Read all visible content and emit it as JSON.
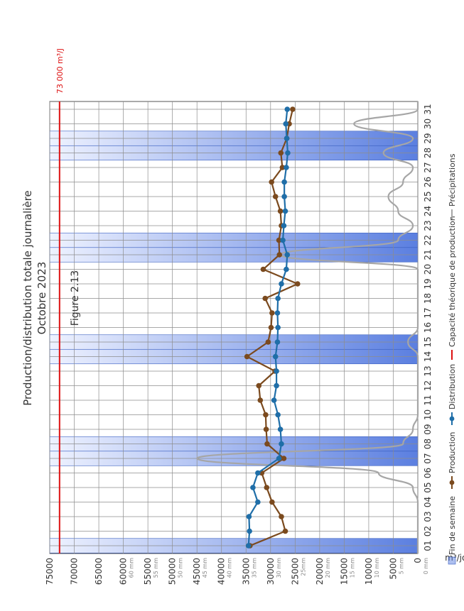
{
  "figure_label": "Figure 2.13",
  "title": "Production/distribution totale journalière",
  "subtitle": "Octobre 2023",
  "capacity_label": "73 000 m³/J",
  "colors": {
    "production": "#7b4a1e",
    "distribution": "#1f6ea8",
    "capacity": "#dd1111",
    "precip": "#a6a6a6",
    "weekend": "#5b7fe0"
  },
  "legend": {
    "weekend": "Fin de semaine",
    "production": "Production",
    "distribution": "Distribution",
    "capacity": "Capacité théorique de production",
    "precip": "Précipitations"
  },
  "chart_data": {
    "type": "line",
    "orientation": "rotated-90-clockwise",
    "title": "Production/distribution totale journalière",
    "subtitle": "Octobre 2023",
    "ylabel": "m³/jour",
    "ylim": [
      0,
      75000
    ],
    "grid": true,
    "legend_position": "bottom",
    "categories": [
      "01",
      "02",
      "03",
      "04",
      "05",
      "06",
      "07",
      "08",
      "09",
      "10",
      "11",
      "12",
      "13",
      "14",
      "15",
      "16",
      "17",
      "18",
      "19",
      "20",
      "21",
      "22",
      "23",
      "24",
      "25",
      "26",
      "27",
      "28",
      "29",
      "30",
      "31"
    ],
    "y_ticks": [
      "0",
      "5000",
      "10000",
      "15000",
      "20000",
      "25000",
      "30000",
      "35000",
      "40000",
      "45000",
      "50000",
      "55000",
      "60000",
      "65000",
      "70000",
      "75000"
    ],
    "precip_ticks": [
      "0 mm",
      "5 mm",
      "10 mm",
      "15 mm",
      "20 mm",
      "25mm",
      "30 mm",
      "35 mm",
      "40 mm",
      "45 mm",
      "50 mm",
      "55 mm",
      "60 mm"
    ],
    "precip_range_mm": [
      0,
      60
    ],
    "series": [
      {
        "name": "Production",
        "values": [
          34200,
          27000,
          27800,
          29700,
          30800,
          31800,
          27300,
          30700,
          30900,
          31000,
          32100,
          32400,
          29100,
          34800,
          30500,
          29900,
          29700,
          31100,
          24500,
          31500,
          28200,
          28300,
          27800,
          28000,
          29000,
          29800,
          27600,
          27900,
          26700,
          26200,
          25500
        ]
      },
      {
        "name": "Distribution",
        "values": [
          34500,
          34300,
          34400,
          32600,
          33600,
          32600,
          28300,
          27800,
          28000,
          28500,
          29300,
          28800,
          28800,
          29000,
          28600,
          28500,
          28600,
          28500,
          27800,
          26800,
          26600,
          27500,
          27300,
          27000,
          27200,
          27200,
          26800,
          26500,
          26700,
          26900,
          26600
        ]
      },
      {
        "name": "Capacité théorique de production",
        "values": [
          73000,
          73000,
          73000,
          73000,
          73000,
          73000,
          73000,
          73000,
          73000,
          73000,
          73000,
          73000,
          73000,
          73000,
          73000,
          73000,
          73000,
          73000,
          73000,
          73000,
          73000,
          73000,
          73000,
          73000,
          73000,
          73000,
          73000,
          73000,
          73000,
          73000,
          73000
        ]
      },
      {
        "name": "Précipitations",
        "unit": "mm",
        "values": [
          0,
          0,
          0,
          0,
          1,
          8,
          45,
          3,
          1,
          0,
          0,
          0,
          0,
          0,
          2,
          0,
          0,
          0,
          0,
          0,
          28,
          4,
          1,
          4,
          6,
          3,
          1,
          7,
          1,
          13,
          0
        ]
      }
    ],
    "weekend_days": [
      "01",
      "07",
      "08",
      "14",
      "15",
      "21",
      "22",
      "28",
      "29"
    ]
  }
}
